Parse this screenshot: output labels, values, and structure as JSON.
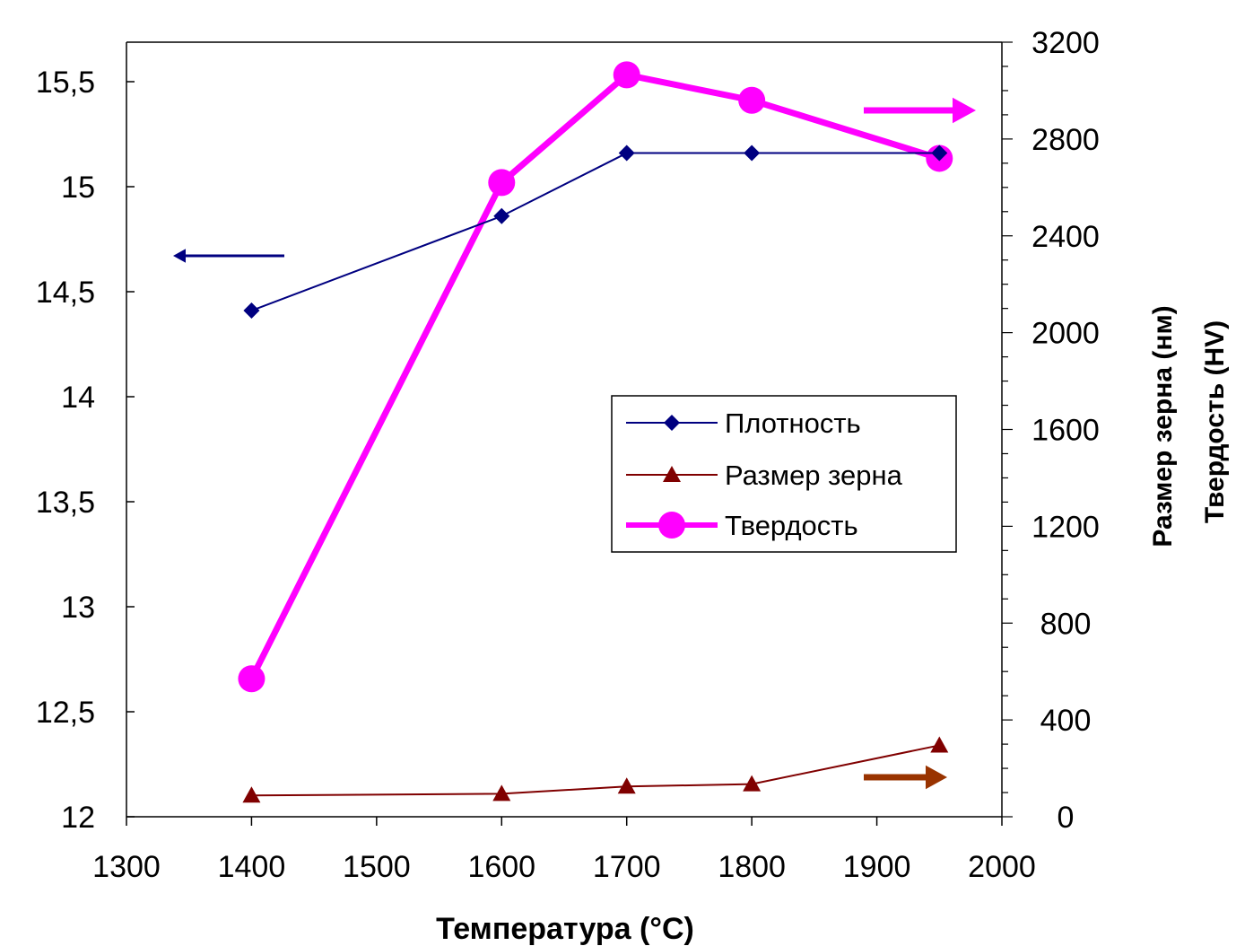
{
  "chart_data": {
    "type": "line",
    "xlabel": "Температура (°C)",
    "ylabel_right": [
      "Размер зерна (нм)",
      "Твердость (HV)"
    ],
    "xlim": [
      1300,
      2000
    ],
    "xticks": [
      1300,
      1400,
      1500,
      1600,
      1700,
      1800,
      1900,
      2000
    ],
    "ylim_left": [
      12,
      15.7
    ],
    "yticks_left": [
      12,
      12.5,
      13,
      13.5,
      14,
      14.5,
      15,
      15.5
    ],
    "ytick_labels_left": [
      "12",
      "12,5",
      "13",
      "13,5",
      "14",
      "14,5",
      "15",
      "15,5"
    ],
    "ylim_right": [
      0,
      3200
    ],
    "yticks_right": [
      0,
      400,
      800,
      1200,
      1600,
      2000,
      2400,
      2800,
      3200
    ],
    "ytick_labels_right": [
      "0",
      "400",
      "800",
      "1200",
      "1600",
      "2000",
      "2400",
      "2800",
      "3200"
    ],
    "grid": false,
    "legend_position": "center-right",
    "series": [
      {
        "name": "Плотность",
        "axis": "left",
        "color": "#000080",
        "marker": "diamond",
        "x": [
          1400,
          1600,
          1700,
          1800,
          1950
        ],
        "values": [
          14.41,
          14.86,
          15.16,
          15.16,
          15.16
        ]
      },
      {
        "name": "Размер зерна",
        "axis": "right",
        "color": "#800000",
        "marker": "triangle",
        "x": [
          1400,
          1600,
          1700,
          1800,
          1950
        ],
        "values": [
          88,
          95,
          125,
          135,
          295
        ]
      },
      {
        "name": "Твердость",
        "axis": "right",
        "color": "#ff00ff",
        "marker": "circle",
        "x": [
          1400,
          1600,
          1700,
          1800,
          1950
        ],
        "values": [
          570,
          2620,
          3065,
          2960,
          2720
        ]
      }
    ],
    "arrows": [
      {
        "direction": "left",
        "refers_to": "Плотность",
        "color": "#000080"
      },
      {
        "direction": "right",
        "refers_to": "Твердость",
        "color": "#ff00ff"
      },
      {
        "direction": "right",
        "refers_to": "Размер зерна",
        "color": "#993300"
      }
    ]
  }
}
